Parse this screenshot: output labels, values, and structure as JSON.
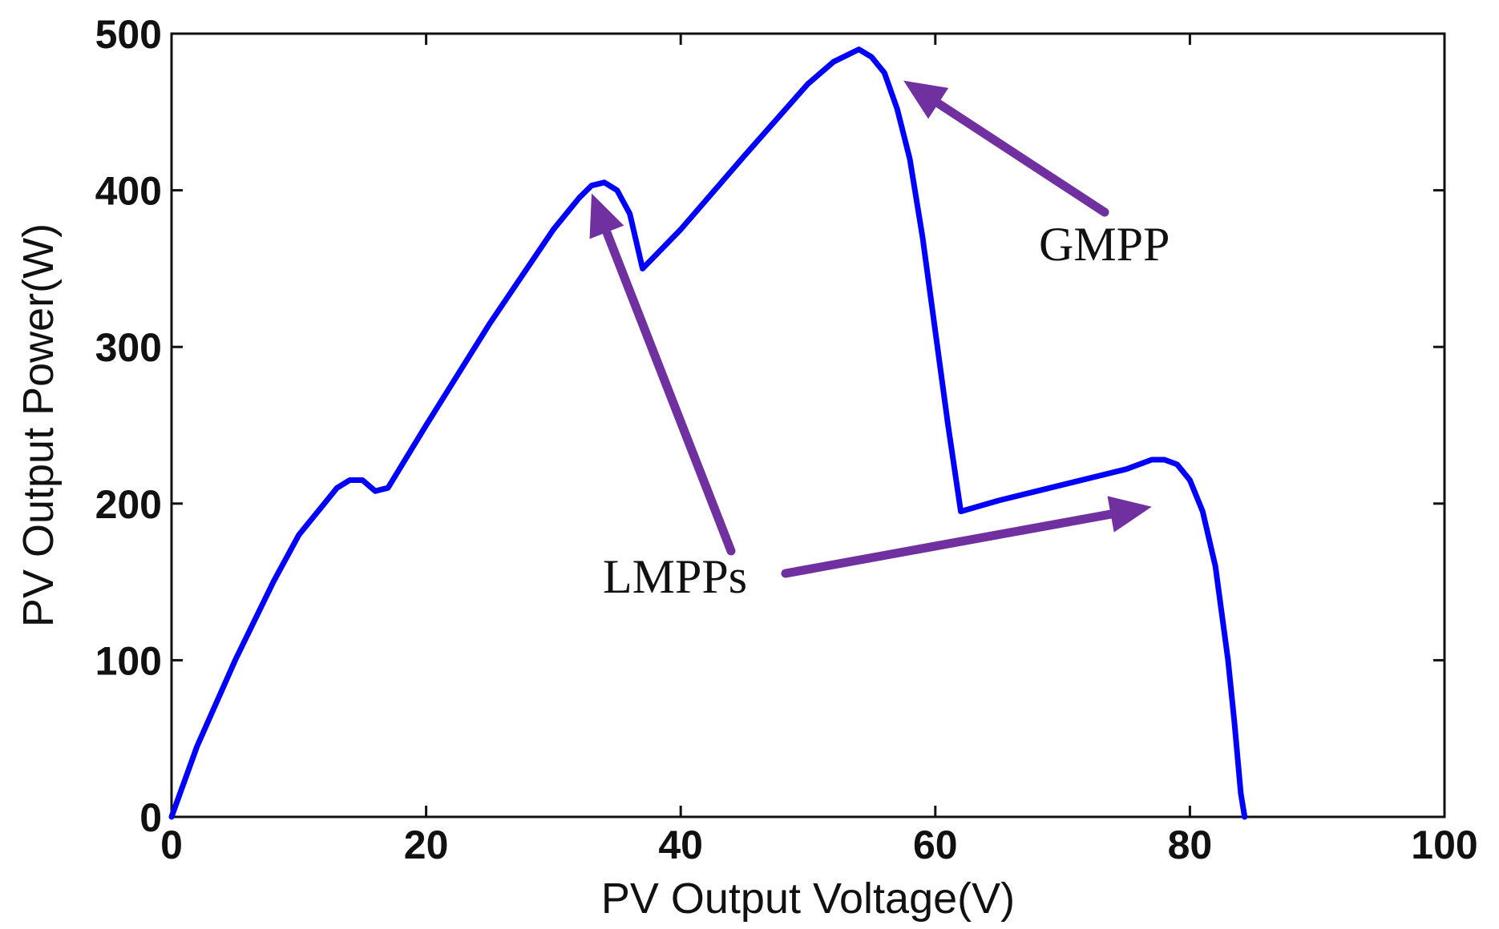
{
  "chart_data": {
    "type": "line",
    "title": "",
    "xlabel": "PV Output Voltage(V)",
    "ylabel": "PV Output Power(W)",
    "xlim": [
      0,
      100
    ],
    "ylim": [
      0,
      500
    ],
    "xticks": [
      0,
      20,
      40,
      60,
      80,
      100
    ],
    "yticks": [
      0,
      100,
      200,
      300,
      400,
      500
    ],
    "grid": false,
    "series": [
      {
        "color": "#0000ff",
        "x": [
          0,
          2,
          5,
          8,
          10,
          12,
          13,
          14,
          15,
          16,
          17,
          20,
          25,
          30,
          32,
          33,
          34,
          35,
          36,
          37,
          40,
          45,
          50,
          52,
          54,
          55,
          56,
          57,
          58,
          59,
          60,
          61,
          62,
          65,
          70,
          75,
          77,
          78,
          79,
          80,
          81,
          82,
          83,
          83.5,
          84,
          84.3
        ],
        "y": [
          0,
          45,
          100,
          150,
          180,
          200,
          210,
          215,
          215,
          208,
          210,
          250,
          315,
          375,
          395,
          403,
          405,
          400,
          385,
          350,
          375,
          422,
          468,
          482,
          490,
          485,
          475,
          452,
          420,
          370,
          310,
          250,
          195,
          202,
          212,
          222,
          228,
          228,
          225,
          215,
          195,
          160,
          100,
          60,
          15,
          0
        ]
      }
    ],
    "annotations": [
      {
        "text": "GMPP",
        "points_to": [
          [
            57.5,
            470
          ]
        ]
      },
      {
        "text": "LMPPs",
        "points_to": [
          [
            33,
            398
          ],
          [
            77,
            198
          ]
        ]
      }
    ],
    "colors": {
      "curve": "#0000ff",
      "arrow": "#7030a0",
      "axis": "#111111"
    }
  }
}
